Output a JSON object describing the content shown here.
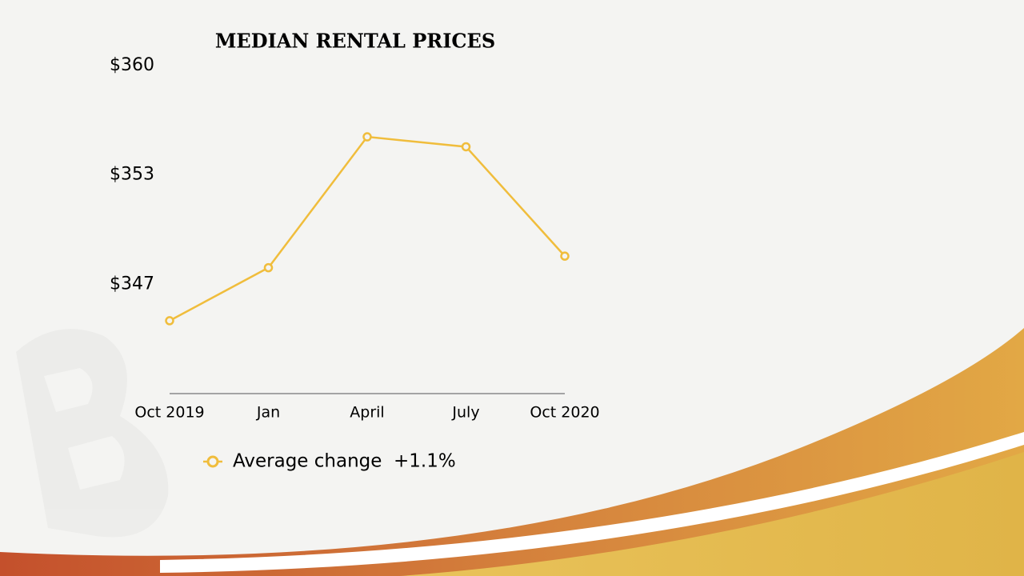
{
  "chart_data": {
    "type": "line",
    "title": "MEDIAN RENTAL PRICES",
    "categories": [
      "Oct 2019",
      "Jan",
      "April",
      "July",
      "Oct 2020"
    ],
    "series": [
      {
        "name": "Average change  +1.1%",
        "color": "#f0bd3c",
        "values": [
          344.6,
          347.8,
          355.7,
          355.1,
          348.5
        ]
      }
    ],
    "ylim": [
      340.2,
      360
    ],
    "yticks": [
      {
        "value": 346.8,
        "label": "$347"
      },
      {
        "value": 353.4,
        "label": "$353"
      },
      {
        "value": 360,
        "label": "$360"
      }
    ],
    "grid": false
  }
}
